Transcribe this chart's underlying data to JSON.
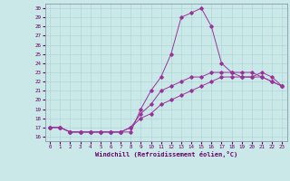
{
  "xlabel": "Windchill (Refroidissement éolien,°C)",
  "background_color": "#cbe8e8",
  "line_color": "#993399",
  "xlim": [
    -0.5,
    23.5
  ],
  "ylim": [
    15.5,
    30.5
  ],
  "xticks": [
    0,
    1,
    2,
    3,
    4,
    5,
    6,
    7,
    8,
    9,
    10,
    11,
    12,
    13,
    14,
    15,
    16,
    17,
    18,
    19,
    20,
    21,
    22,
    23
  ],
  "yticks": [
    16,
    17,
    18,
    19,
    20,
    21,
    22,
    23,
    24,
    25,
    26,
    27,
    28,
    29,
    30
  ],
  "line1_x": [
    0,
    1,
    2,
    3,
    4,
    5,
    6,
    7,
    8,
    9,
    10,
    11,
    12,
    13,
    14,
    15,
    16,
    17,
    18,
    19,
    20,
    21,
    22,
    23
  ],
  "line1_y": [
    17.0,
    17.0,
    16.5,
    16.5,
    16.5,
    16.5,
    16.5,
    16.5,
    16.5,
    19.0,
    21.0,
    22.5,
    25.0,
    29.0,
    29.5,
    30.0,
    28.0,
    24.0,
    23.0,
    22.5,
    22.5,
    23.0,
    22.5,
    21.5
  ],
  "line2_x": [
    0,
    1,
    2,
    3,
    4,
    5,
    6,
    7,
    8,
    9,
    10,
    11,
    12,
    13,
    14,
    15,
    16,
    17,
    18,
    19,
    20,
    21,
    22,
    23
  ],
  "line2_y": [
    17.0,
    17.0,
    16.5,
    16.5,
    16.5,
    16.5,
    16.5,
    16.5,
    17.0,
    18.5,
    19.5,
    21.0,
    21.5,
    22.0,
    22.5,
    22.5,
    23.0,
    23.0,
    23.0,
    23.0,
    23.0,
    22.5,
    22.0,
    21.5
  ],
  "line3_x": [
    0,
    1,
    2,
    3,
    4,
    5,
    6,
    7,
    8,
    9,
    10,
    11,
    12,
    13,
    14,
    15,
    16,
    17,
    18,
    19,
    20,
    21,
    22,
    23
  ],
  "line3_y": [
    17.0,
    17.0,
    16.5,
    16.5,
    16.5,
    16.5,
    16.5,
    16.5,
    17.0,
    18.0,
    18.5,
    19.5,
    20.0,
    20.5,
    21.0,
    21.5,
    22.0,
    22.5,
    22.5,
    22.5,
    22.5,
    22.5,
    22.0,
    21.5
  ]
}
